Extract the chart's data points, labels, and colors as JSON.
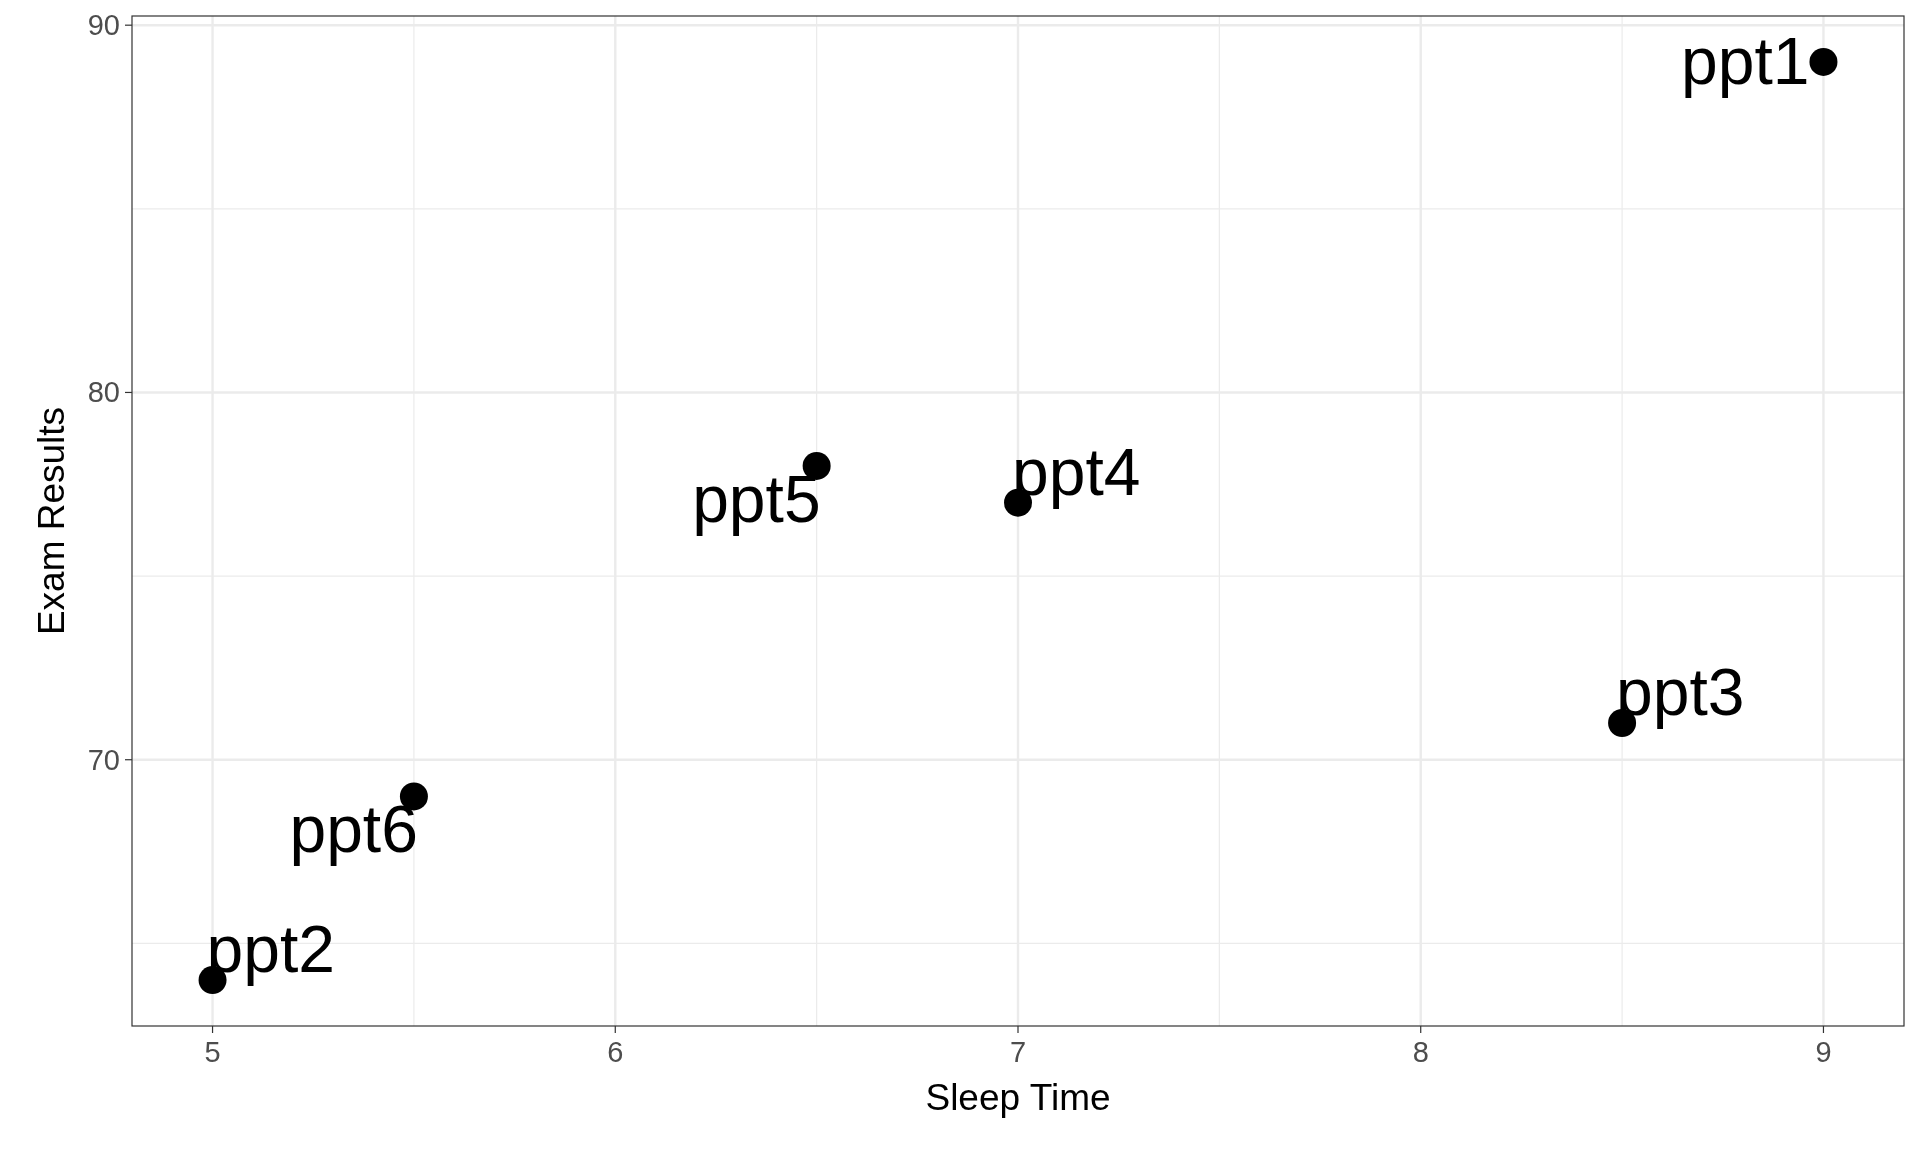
{
  "chart_data": {
    "type": "scatter",
    "xlabel": "Sleep Time",
    "ylabel": "Exam Results",
    "x": [
      9,
      5,
      8.5,
      7,
      6.5,
      5.5
    ],
    "values": [
      89,
      64,
      71,
      77,
      78,
      69
    ],
    "color": "#000000",
    "marker": "circle",
    "grid": true,
    "xlim": [
      4.8,
      9.2
    ],
    "ylim": [
      62.75,
      90.25
    ],
    "xticks": [
      5,
      6,
      7,
      8,
      9
    ],
    "yticks": [
      70,
      80,
      90
    ],
    "annotations": [
      {
        "text": "ppt1",
        "x": 9,
        "y": 89
      },
      {
        "text": "ppt2",
        "x": 5,
        "y": 64
      },
      {
        "text": "ppt3",
        "x": 8.5,
        "y": 71
      },
      {
        "text": "ppt4",
        "x": 7,
        "y": 77
      },
      {
        "text": "ppt5",
        "x": 6.5,
        "y": 78
      },
      {
        "text": "ppt6",
        "x": 5.5,
        "y": 69
      }
    ]
  }
}
